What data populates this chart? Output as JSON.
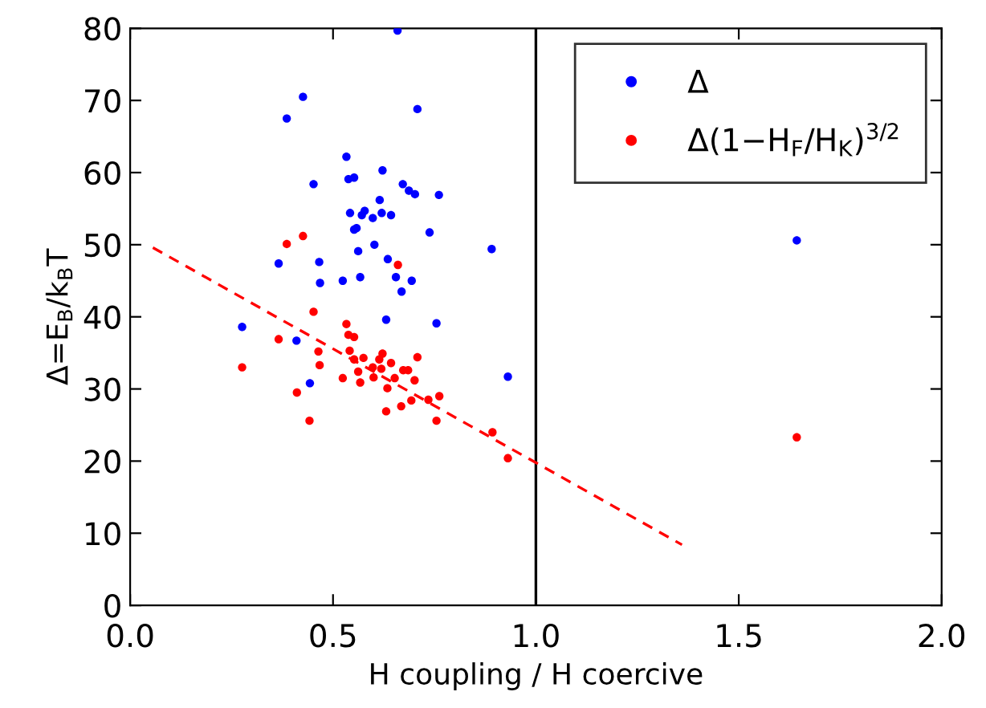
{
  "chart_data": {
    "type": "scatter",
    "xlabel": "H coupling / H coercive",
    "ylabel": "Δ=E$_{B}$/k$_{B}$T",
    "xlim": [
      0,
      2
    ],
    "ylim": [
      0,
      80
    ],
    "xticks": [
      {
        "value": 0,
        "label": "0.0"
      },
      0.5,
      {
        "value": 1,
        "label": "1.0"
      },
      1.5,
      {
        "value": 2,
        "label": "2.0"
      }
    ],
    "yticks": [
      0,
      10,
      20,
      30,
      40,
      50,
      60,
      70,
      80
    ],
    "grid": false,
    "legend": "top right",
    "marker": "circle",
    "ref_lines": [
      {
        "axis": "x",
        "value": 1.0,
        "color": "#000000",
        "line_style": "solid"
      }
    ],
    "series": [
      {
        "name": "Δ",
        "color": "#0000ff",
        "x": [
          0.659,
          0.426,
          0.386,
          0.708,
          0.533,
          0.622,
          0.452,
          0.538,
          0.552,
          0.672,
          0.687,
          0.702,
          0.761,
          0.615,
          0.542,
          0.578,
          0.571,
          0.598,
          0.62,
          0.643,
          0.552,
          0.558,
          0.738,
          0.562,
          0.602,
          0.366,
          0.466,
          0.635,
          0.468,
          0.524,
          0.567,
          0.655,
          0.694,
          0.669,
          0.276,
          0.631,
          0.755,
          0.41,
          0.443,
          0.931,
          0.891,
          1.643
        ],
        "values": [
          79.7,
          70.5,
          67.5,
          68.8,
          62.2,
          60.3,
          58.4,
          59.1,
          59.3,
          58.4,
          57.5,
          57.0,
          56.9,
          56.2,
          54.4,
          54.7,
          54.1,
          53.7,
          54.4,
          54.1,
          52.1,
          52.3,
          51.7,
          49.1,
          50.0,
          47.4,
          47.6,
          48.0,
          44.7,
          45.0,
          45.5,
          45.5,
          45.0,
          43.5,
          38.6,
          39.6,
          39.1,
          36.7,
          30.8,
          31.7,
          49.4,
          50.6
        ]
      },
      {
        "name": "Δ(1−H$_{F}$/H$_{K}$)$^{3/2}$",
        "color": "#ff0000",
        "x": [
          0.426,
          0.386,
          0.66,
          0.452,
          0.533,
          0.538,
          0.552,
          0.366,
          0.464,
          0.541,
          0.552,
          0.575,
          0.622,
          0.614,
          0.643,
          0.708,
          0.276,
          0.467,
          0.598,
          0.619,
          0.562,
          0.673,
          0.685,
          0.6,
          0.524,
          0.567,
          0.652,
          0.701,
          0.634,
          0.411,
          0.693,
          0.668,
          0.735,
          0.762,
          0.631,
          0.755,
          0.442,
          0.893,
          0.931,
          1.643
        ],
        "values": [
          51.2,
          50.1,
          47.2,
          40.7,
          39.0,
          37.5,
          37.2,
          36.9,
          35.2,
          35.3,
          34.1,
          34.3,
          34.9,
          34.1,
          33.6,
          34.4,
          33.0,
          33.3,
          33.0,
          32.8,
          32.4,
          32.6,
          32.6,
          31.6,
          31.5,
          30.9,
          31.5,
          31.2,
          30.1,
          29.5,
          28.4,
          27.6,
          28.5,
          29.0,
          26.9,
          25.6,
          25.6,
          24.0,
          20.4,
          23.3
        ]
      },
      {
        "type": "line",
        "color": "#ff0000",
        "line_style": "dashed",
        "marker": "none",
        "x": [
          0.056,
          1.36
        ],
        "values": [
          49.6,
          8.4
        ]
      }
    ]
  }
}
